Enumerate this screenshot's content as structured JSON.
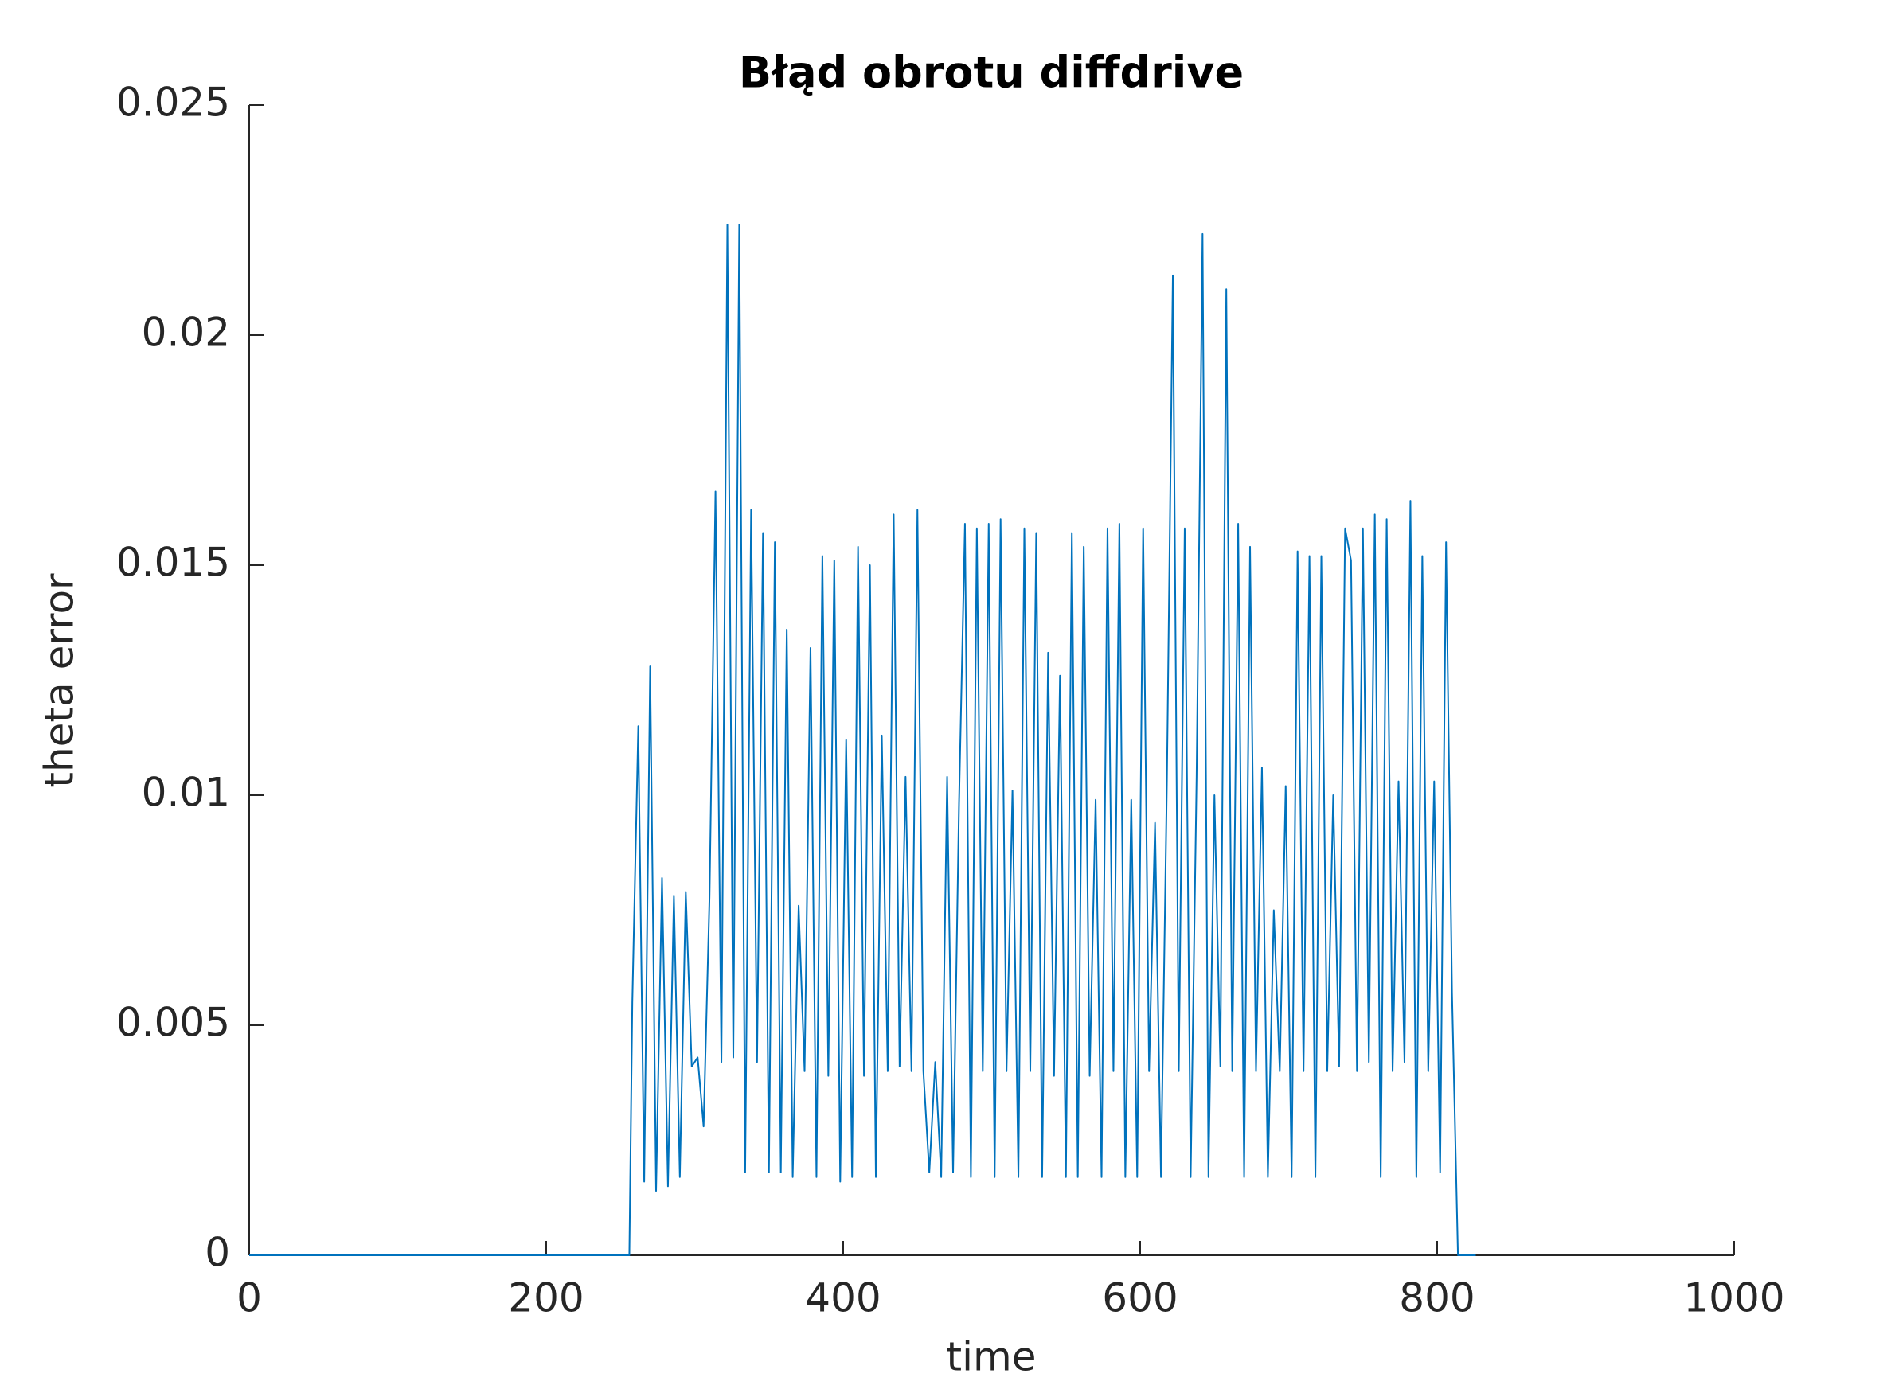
{
  "chart_data": {
    "type": "line",
    "title": "Błąd obrotu diffdrive",
    "x_label": "time",
    "y_label": "theta error",
    "x": [
      0,
      256,
      258,
      262,
      266,
      270,
      274,
      278,
      282,
      286,
      290,
      294,
      298,
      302,
      306,
      310,
      314,
      318,
      322,
      326,
      330,
      334,
      338,
      342,
      346,
      350,
      354,
      358,
      362,
      366,
      370,
      374,
      378,
      382,
      386,
      390,
      394,
      398,
      402,
      406,
      410,
      414,
      418,
      422,
      426,
      430,
      434,
      438,
      442,
      446,
      450,
      454,
      458,
      462,
      466,
      470,
      474,
      478,
      482,
      486,
      490,
      494,
      498,
      502,
      506,
      510,
      514,
      518,
      522,
      526,
      530,
      534,
      538,
      542,
      546,
      550,
      554,
      558,
      562,
      566,
      570,
      574,
      578,
      582,
      586,
      590,
      594,
      598,
      602,
      606,
      610,
      614,
      618,
      622,
      626,
      630,
      634,
      638,
      642,
      646,
      650,
      654,
      658,
      662,
      666,
      670,
      674,
      678,
      682,
      686,
      690,
      694,
      698,
      702,
      706,
      710,
      714,
      718,
      722,
      726,
      730,
      734,
      738,
      742,
      746,
      750,
      754,
      758,
      762,
      766,
      770,
      774,
      778,
      782,
      786,
      790,
      794,
      798,
      802,
      806,
      810,
      814,
      826
    ],
    "series": [
      {
        "name": "theta error",
        "color": "#0072bd",
        "values": [
          0,
          0,
          0.0055,
          0.0115,
          0.0016,
          0.0128,
          0.0014,
          0.0082,
          0.0015,
          0.0078,
          0.0017,
          0.0079,
          0.0041,
          0.0043,
          0.0028,
          0.0078,
          0.0166,
          0.0042,
          0.0224,
          0.0043,
          0.0224,
          0.0018,
          0.0162,
          0.0042,
          0.0157,
          0.0018,
          0.0155,
          0.0018,
          0.0136,
          0.0017,
          0.0076,
          0.004,
          0.0132,
          0.0017,
          0.0152,
          0.0039,
          0.0151,
          0.0016,
          0.0112,
          0.0017,
          0.0154,
          0.0039,
          0.015,
          0.0017,
          0.0113,
          0.004,
          0.0161,
          0.0041,
          0.0104,
          0.004,
          0.0162,
          0.004,
          0.0018,
          0.0042,
          0.0017,
          0.0104,
          0.0018,
          0.0098,
          0.0159,
          0.0017,
          0.0158,
          0.004,
          0.0159,
          0.0017,
          0.016,
          0.004,
          0.0101,
          0.0017,
          0.0158,
          0.004,
          0.0157,
          0.0017,
          0.0131,
          0.0039,
          0.0126,
          0.0017,
          0.0157,
          0.0017,
          0.0154,
          0.0039,
          0.0099,
          0.0017,
          0.0158,
          0.004,
          0.0159,
          0.0017,
          0.0099,
          0.0017,
          0.0158,
          0.004,
          0.0094,
          0.0017,
          0.0103,
          0.0213,
          0.004,
          0.0158,
          0.0017,
          0.0104,
          0.0222,
          0.0017,
          0.01,
          0.0041,
          0.021,
          0.004,
          0.0159,
          0.0017,
          0.0154,
          0.004,
          0.0106,
          0.0017,
          0.0075,
          0.004,
          0.0102,
          0.0017,
          0.0153,
          0.004,
          0.0152,
          0.0017,
          0.0152,
          0.004,
          0.01,
          0.0041,
          0.0158,
          0.0151,
          0.004,
          0.0158,
          0.0042,
          0.0161,
          0.0017,
          0.016,
          0.004,
          0.0103,
          0.0042,
          0.0164,
          0.0017,
          0.0152,
          0.004,
          0.0103,
          0.0018,
          0.0155,
          0.0057,
          0,
          0
        ]
      }
    ],
    "xlim": [
      0,
      1000
    ],
    "xticks": [
      0,
      200,
      400,
      600,
      800,
      1000
    ],
    "ylim": [
      0,
      0.025
    ],
    "yticks": [
      0,
      0.005,
      0.01,
      0.015,
      0.02,
      0.025
    ],
    "grid": false
  }
}
